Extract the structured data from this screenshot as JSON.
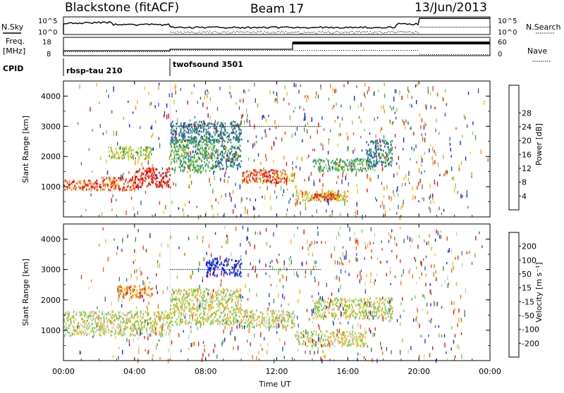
{
  "header": {
    "station": "Blackstone (fitACF)",
    "beam": "Beam 17",
    "date": "13/Jun/2013"
  },
  "left_labels": {
    "nsky": "N.Sky",
    "freq_line1": "Freq.",
    "freq_line2": "[MHz]",
    "cpid": "CPID"
  },
  "right_labels": {
    "nsearch": "N.Search",
    "nave": "Nave"
  },
  "top_panel_ticks": {
    "noise_left": [
      "10^5",
      "10^0"
    ],
    "noise_right": [
      "10^5",
      "10^0"
    ],
    "freq_left": [
      "18",
      "8"
    ],
    "nave_right": [
      "60",
      "0"
    ]
  },
  "cpid_entries": [
    {
      "label": "rbsp-tau 210",
      "start_hour": 0,
      "end_hour": 6
    },
    {
      "label": "twofsound 3501",
      "start_hour": 6,
      "end_hour": 24
    }
  ],
  "x_axis": {
    "label": "Time UT",
    "ticks": [
      "00:00",
      "04:00",
      "08:00",
      "12:00",
      "16:00",
      "20:00",
      "00:00"
    ],
    "range_hours": [
      0,
      24
    ]
  },
  "chart_data": [
    {
      "type": "heatmap",
      "name": "power",
      "ylabel": "Slant Range [km]",
      "ylim": [
        0,
        4500
      ],
      "yticks": [
        1000,
        2000,
        3000,
        4000
      ],
      "xlim": [
        0,
        24
      ],
      "colorbar": {
        "label": "Power [dB]",
        "ticks": [
          "4",
          "8",
          "12",
          "16",
          "20",
          "24",
          "28"
        ],
        "colors": [
          "#1010ff",
          "#1f4fb0",
          "#2f7a8c",
          "#3aa040",
          "#7bd03a",
          "#f0c000",
          "#ff8a00",
          "#ff3000",
          "#ee0000"
        ]
      },
      "bands": [
        {
          "t0": 0.0,
          "t1": 2.0,
          "r0": 900,
          "r1": 1250,
          "level": 7
        },
        {
          "t0": 2.0,
          "t1": 4.0,
          "r0": 900,
          "r1": 1350,
          "level": 7
        },
        {
          "t0": 4.0,
          "t1": 6.0,
          "r0": 1000,
          "r1": 1650,
          "level": 8
        },
        {
          "t0": 2.5,
          "t1": 5.0,
          "r0": 1950,
          "r1": 2350,
          "level": 4
        },
        {
          "t0": 6.0,
          "t1": 8.5,
          "r0": 1500,
          "r1": 2700,
          "level": 3
        },
        {
          "t0": 8.5,
          "t1": 10.0,
          "r0": 1600,
          "r1": 2400,
          "level": 2
        },
        {
          "t0": 10.0,
          "t1": 12.5,
          "r0": 1150,
          "r1": 1600,
          "level": 7
        },
        {
          "t0": 12.5,
          "t1": 13.0,
          "r0": 1200,
          "r1": 1500,
          "level": 5
        },
        {
          "t0": 13.0,
          "t1": 16.0,
          "r0": 550,
          "r1": 900,
          "level": 5
        },
        {
          "t0": 14.0,
          "t1": 15.5,
          "r0": 600,
          "r1": 800,
          "level": 8
        },
        {
          "t0": 14.0,
          "t1": 17.5,
          "r0": 1550,
          "r1": 1950,
          "level": 3
        },
        {
          "t0": 17.0,
          "t1": 18.5,
          "r0": 1700,
          "r1": 2600,
          "level": 2
        },
        {
          "t0": 6.0,
          "t1": 10.0,
          "r0": 2500,
          "r1": 3200,
          "level": 2
        }
      ]
    },
    {
      "type": "heatmap",
      "name": "velocity",
      "ylabel": "Slant Range [km]",
      "ylim": [
        0,
        4500
      ],
      "yticks": [
        1000,
        2000,
        3000,
        4000
      ],
      "xlim": [
        0,
        24
      ],
      "colorbar": {
        "label": "Velocity [m s⁻¹]",
        "ticks": [
          "200",
          "100",
          "50",
          "15",
          "-15",
          "-50",
          "-100",
          "-200"
        ],
        "colors": [
          "#1010ff",
          "#2050d0",
          "#208a50",
          "#60d040",
          "#c8c8c8",
          "#ffb000",
          "#ff7000",
          "#ff3000",
          "#ee0000"
        ]
      },
      "bands": [
        {
          "t0": 0.0,
          "t1": 6.0,
          "r0": 850,
          "r1": 1650,
          "level": 4
        },
        {
          "t0": 3.0,
          "t1": 5.0,
          "r0": 2100,
          "r1": 2500,
          "level": 6
        },
        {
          "t0": 6.0,
          "t1": 10.0,
          "r0": 1200,
          "r1": 2400,
          "level": 4
        },
        {
          "t0": 10.0,
          "t1": 13.0,
          "r0": 1100,
          "r1": 1700,
          "level": 4
        },
        {
          "t0": 13.0,
          "t1": 17.0,
          "r0": 500,
          "r1": 1000,
          "level": 4
        },
        {
          "t0": 14.0,
          "t1": 18.5,
          "r0": 1400,
          "r1": 2100,
          "level": 4
        },
        {
          "t0": 8.0,
          "t1": 10.0,
          "r0": 2800,
          "r1": 3400,
          "level": 0
        }
      ]
    }
  ]
}
